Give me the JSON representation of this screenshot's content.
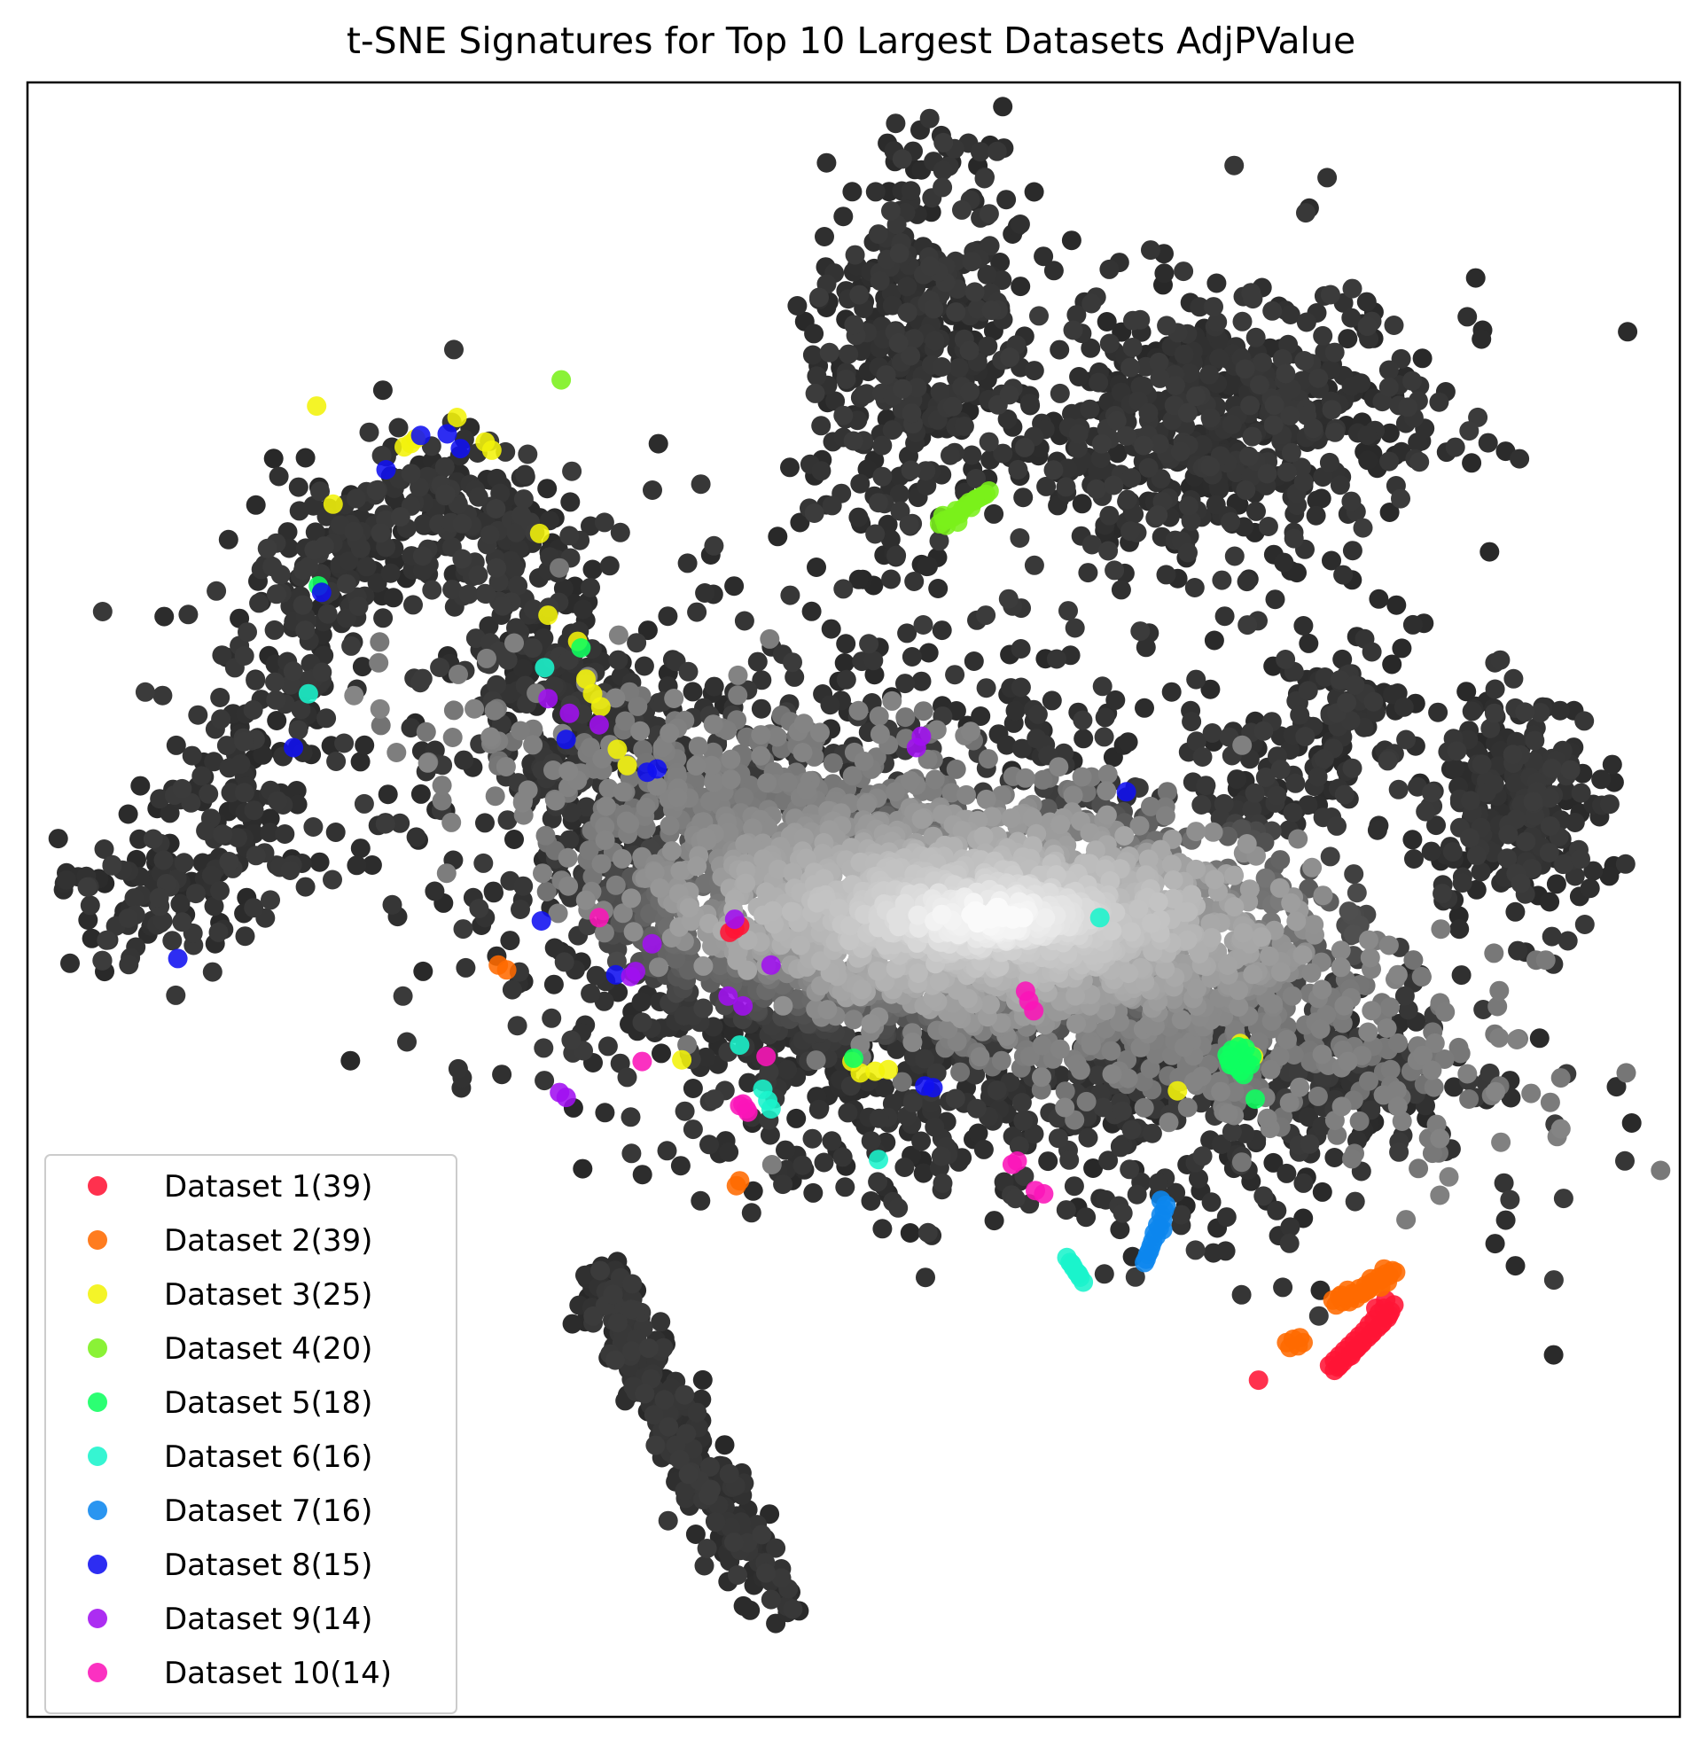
{
  "chart_data": {
    "type": "scatter",
    "title": "t-SNE Signatures for Top 10 Largest Datasets AdjPValue",
    "xlabel": "",
    "ylabel": "",
    "xlim": [
      0,
      100
    ],
    "ylim": [
      0,
      100
    ],
    "ticks": "none",
    "grid": false,
    "legend_position": "lower-left",
    "background_points": {
      "description_free": true,
      "color_map": "greys_by_density",
      "clusters": [
        {
          "kind": "band",
          "path": [
            [
              4.5,
              49.5
            ],
            [
              9,
              50.5
            ],
            [
              13,
              56
            ],
            [
              15,
              62
            ],
            [
              17,
              68
            ],
            [
              20,
              72
            ],
            [
              25,
              75
            ],
            [
              29,
              72
            ],
            [
              31,
              66
            ],
            [
              33,
              60
            ],
            [
              35,
              54
            ],
            [
              38,
              48
            ],
            [
              43,
              44
            ],
            [
              50,
              44
            ],
            [
              58,
              46
            ],
            [
              66,
              50
            ],
            [
              72,
              54
            ],
            [
              78,
              60
            ],
            [
              82,
              64
            ]
          ],
          "width": 5.5,
          "count": 1300
        },
        {
          "kind": "blob",
          "center": [
            58,
            49
          ],
          "radii": [
            24,
            7
          ],
          "angle": -18,
          "count": 2200,
          "light": true
        },
        {
          "kind": "blob",
          "center": [
            52,
            52
          ],
          "radii": [
            30,
            14
          ],
          "angle": -15,
          "count": 1100
        },
        {
          "kind": "blob",
          "center": [
            54,
            84
          ],
          "radii": [
            5.5,
            11
          ],
          "angle": -12,
          "count": 420
        },
        {
          "kind": "blob",
          "center": [
            72,
            79
          ],
          "radii": [
            12,
            8
          ],
          "angle": 5,
          "count": 650
        },
        {
          "kind": "blob",
          "center": [
            90,
            56
          ],
          "radii": [
            4.5,
            6
          ],
          "angle": 0,
          "count": 260
        },
        {
          "kind": "blob",
          "center": [
            60,
            40
          ],
          "radii": [
            24,
            9
          ],
          "angle": -5,
          "count": 700
        },
        {
          "kind": "blob",
          "center": [
            43,
            39
          ],
          "radii": [
            2.2,
            10
          ],
          "angle": 18,
          "count": 300,
          "path": [
            [
              34.5,
              27
            ],
            [
              39,
              18
            ],
            [
              45.5,
              6.5
            ]
          ]
        },
        {
          "kind": "blob",
          "center": [
            80,
            40
          ],
          "radii": [
            4,
            3
          ],
          "angle": 0,
          "count": 110
        }
      ]
    },
    "series": [
      {
        "name": "Dataset 1(39)",
        "color": "#ff1535",
        "points": [
          [
            42.5,
            48
          ],
          [
            42.8,
            48.2
          ],
          [
            43.1,
            48.4
          ],
          [
            74.5,
            20.6
          ],
          [
            78.8,
            21.5
          ],
          [
            79.1,
            21.8
          ],
          [
            79.4,
            22.1
          ],
          [
            79.7,
            22.4
          ],
          [
            80,
            22.7
          ],
          [
            80.3,
            23
          ],
          [
            80.6,
            23.3
          ],
          [
            80.9,
            23.6
          ],
          [
            81.2,
            24
          ],
          [
            81.5,
            24.3
          ],
          [
            81.8,
            24.7
          ],
          [
            82.1,
            25
          ],
          [
            79.3,
            21.4
          ],
          [
            79.6,
            21.7
          ],
          [
            79.9,
            22
          ],
          [
            80.2,
            22.3
          ],
          [
            80.5,
            22.6
          ],
          [
            80.8,
            22.9
          ],
          [
            81.1,
            23.2
          ],
          [
            81.4,
            23.5
          ],
          [
            81.7,
            23.8
          ],
          [
            82,
            24.1
          ],
          [
            82.3,
            24.4
          ],
          [
            82.5,
            24.8
          ],
          [
            79.1,
            21.2
          ],
          [
            79.4,
            21.5
          ],
          [
            80.1,
            22.1
          ],
          [
            80.7,
            22.8
          ],
          [
            81.3,
            23.4
          ],
          [
            81.9,
            24
          ],
          [
            82.4,
            24.6
          ],
          [
            82.7,
            25.2
          ],
          [
            82.2,
            25.5
          ],
          [
            81.6,
            25
          ],
          [
            80.4,
            22.5
          ]
        ]
      },
      {
        "name": "Dataset 2(39)",
        "color": "#ff6a00",
        "points": [
          [
            28.5,
            46
          ],
          [
            29,
            45.7
          ],
          [
            42.9,
            32.5
          ],
          [
            43.1,
            32.8
          ],
          [
            76.2,
            22.9
          ],
          [
            76.6,
            23.1
          ],
          [
            76.9,
            22.7
          ],
          [
            77.2,
            22.9
          ],
          [
            79,
            25.5
          ],
          [
            79.4,
            25.7
          ],
          [
            79.8,
            25.6
          ],
          [
            80.2,
            25.9
          ],
          [
            80.6,
            26.2
          ],
          [
            81,
            26.4
          ],
          [
            81.4,
            26.6
          ],
          [
            81.8,
            26.9
          ],
          [
            82.2,
            27.1
          ],
          [
            82.6,
            27.3
          ],
          [
            79.2,
            25.2
          ],
          [
            79.6,
            25.4
          ],
          [
            80,
            25.4
          ],
          [
            80.4,
            25.6
          ],
          [
            80.8,
            25.9
          ],
          [
            81.2,
            26.2
          ],
          [
            81.6,
            26.5
          ],
          [
            82,
            26.8
          ],
          [
            82.4,
            27
          ],
          [
            82.8,
            27.2
          ],
          [
            79.5,
            25.8
          ],
          [
            80.9,
            26
          ],
          [
            81.9,
            26.3
          ],
          [
            82.3,
            26.6
          ],
          [
            76.4,
            22.6
          ],
          [
            77,
            23.2
          ],
          [
            80.1,
            25.7
          ],
          [
            81.3,
            26.8
          ],
          [
            82.1,
            27.4
          ],
          [
            79.9,
            26.1
          ],
          [
            81.1,
            26.1
          ]
        ]
      },
      {
        "name": "Dataset 3(25)",
        "color": "#f2f20a",
        "points": [
          [
            17.5,
            80.2
          ],
          [
            26,
            79.5
          ],
          [
            22.8,
            77.7
          ],
          [
            23.2,
            77.9
          ],
          [
            23.5,
            78.2
          ],
          [
            27.7,
            78
          ],
          [
            28.1,
            77.5
          ],
          [
            18.5,
            74.2
          ],
          [
            31,
            72.4
          ],
          [
            31.5,
            67.4
          ],
          [
            33.3,
            65.8
          ],
          [
            33.8,
            63.5
          ],
          [
            34.2,
            62.6
          ],
          [
            34.7,
            61.8
          ],
          [
            35.7,
            59.2
          ],
          [
            36.3,
            58.2
          ],
          [
            39.6,
            40.2
          ],
          [
            49.9,
            40.1
          ],
          [
            50.4,
            39.4
          ],
          [
            51.3,
            39.5
          ],
          [
            52.1,
            39.6
          ],
          [
            73.4,
            41.2
          ],
          [
            73.8,
            40.7
          ],
          [
            74.2,
            40.4
          ],
          [
            69.6,
            38.3
          ]
        ]
      },
      {
        "name": "Dataset 4(20)",
        "color": "#7af01a",
        "points": [
          [
            32.3,
            81.8
          ],
          [
            55.2,
            73
          ],
          [
            55.5,
            73.2
          ],
          [
            56,
            73.4
          ],
          [
            56.4,
            73.6
          ],
          [
            56.8,
            74.1
          ],
          [
            57.3,
            74.4
          ],
          [
            57.6,
            74.6
          ],
          [
            58,
            74.8
          ],
          [
            55.4,
            73.5
          ],
          [
            55.8,
            73.3
          ],
          [
            56.2,
            73.8
          ],
          [
            56.6,
            73.9
          ],
          [
            57,
            74.3
          ],
          [
            57.4,
            74.5
          ],
          [
            57.8,
            74.7
          ],
          [
            55.6,
            72.9
          ],
          [
            56.3,
            73.1
          ],
          [
            57.1,
            74
          ],
          [
            58.2,
            75
          ]
        ]
      },
      {
        "name": "Dataset 5(18)",
        "color": "#0fff60",
        "points": [
          [
            17.6,
            69.2
          ],
          [
            33.5,
            65.4
          ],
          [
            50,
            40.3
          ],
          [
            72.6,
            40.5
          ],
          [
            72.9,
            40.8
          ],
          [
            73.2,
            40.2
          ],
          [
            73.5,
            40.6
          ],
          [
            73.8,
            40
          ],
          [
            74.1,
            40.4
          ],
          [
            73.1,
            39.8
          ],
          [
            73.4,
            39.5
          ],
          [
            73.7,
            40.9
          ],
          [
            74,
            39.9
          ],
          [
            72.8,
            39.9
          ],
          [
            73.3,
            41
          ],
          [
            73.6,
            39.3
          ],
          [
            74.3,
            37.8
          ],
          [
            72.7,
            40.2
          ]
        ]
      },
      {
        "name": "Dataset 6(16)",
        "color": "#1af4cc",
        "points": [
          [
            17,
            62.6
          ],
          [
            31.3,
            64.2
          ],
          [
            64.9,
            48.9
          ],
          [
            43.1,
            41.1
          ],
          [
            44.5,
            38.4
          ],
          [
            44.8,
            37.7
          ],
          [
            45,
            37.2
          ],
          [
            51.5,
            34.1
          ],
          [
            62.9,
            28.1
          ],
          [
            63.1,
            27.8
          ],
          [
            63.3,
            27.5
          ],
          [
            63.5,
            27.2
          ],
          [
            63.7,
            26.9
          ],
          [
            63.9,
            26.6
          ],
          [
            63.2,
            27.7
          ],
          [
            63.6,
            27.1
          ]
        ]
      },
      {
        "name": "Dataset 7(16)",
        "color": "#0d86ee",
        "points": [
          [
            68.6,
            31.6
          ],
          [
            68.8,
            31
          ],
          [
            68.7,
            30.4
          ],
          [
            68.5,
            29.9
          ],
          [
            68.3,
            29.4
          ],
          [
            68,
            28.8
          ],
          [
            67.8,
            28.3
          ],
          [
            67.6,
            27.8
          ],
          [
            68.9,
            31.3
          ],
          [
            68.4,
            30.1
          ],
          [
            68.1,
            29.1
          ],
          [
            67.7,
            28
          ],
          [
            68.6,
            30.7
          ],
          [
            68.2,
            29.6
          ],
          [
            67.9,
            28.5
          ],
          [
            68.7,
            29.8
          ]
        ]
      },
      {
        "name": "Dataset 8(15)",
        "color": "#1010f0",
        "points": [
          [
            9.1,
            46.4
          ],
          [
            16.1,
            59.3
          ],
          [
            17.8,
            68.8
          ],
          [
            21.7,
            76.3
          ],
          [
            23.8,
            78.4
          ],
          [
            25.4,
            78.5
          ],
          [
            26.2,
            77.6
          ],
          [
            32.6,
            59.8
          ],
          [
            37.5,
            57.8
          ],
          [
            38.1,
            58
          ],
          [
            31.1,
            48.7
          ],
          [
            35.6,
            45.4
          ],
          [
            54.3,
            38.6
          ],
          [
            54.8,
            38.5
          ],
          [
            66.5,
            56.6
          ]
        ]
      },
      {
        "name": "Dataset 9(14)",
        "color": "#a010f0",
        "points": [
          [
            31.5,
            62.3
          ],
          [
            32.8,
            61.4
          ],
          [
            34.6,
            60.7
          ],
          [
            53.8,
            59.3
          ],
          [
            54.1,
            60
          ],
          [
            42.8,
            48.8
          ],
          [
            37.8,
            47.3
          ],
          [
            36.5,
            45.3
          ],
          [
            36.8,
            45.6
          ],
          [
            45,
            46
          ],
          [
            42.4,
            44.1
          ],
          [
            43.3,
            43.5
          ],
          [
            32.2,
            38.2
          ],
          [
            32.6,
            37.9
          ]
        ]
      },
      {
        "name": "Dataset 10(14)",
        "color": "#fa14b8",
        "points": [
          [
            34.6,
            48.9
          ],
          [
            37.2,
            40.1
          ],
          [
            44.7,
            40.4
          ],
          [
            43.1,
            37.4
          ],
          [
            43.5,
            37.2
          ],
          [
            60.4,
            44.4
          ],
          [
            60.9,
            43.2
          ],
          [
            59.6,
            33.8
          ],
          [
            61,
            32.2
          ],
          [
            61.5,
            32
          ],
          [
            43.3,
            37.5
          ],
          [
            43.6,
            37
          ],
          [
            60.6,
            43.8
          ],
          [
            59.9,
            34
          ]
        ]
      }
    ],
    "legend": [
      {
        "label": "Dataset 1(39)",
        "color": "#ff1535"
      },
      {
        "label": "Dataset 2(39)",
        "color": "#ff6a00"
      },
      {
        "label": "Dataset 3(25)",
        "color": "#f2f20a"
      },
      {
        "label": "Dataset 4(20)",
        "color": "#7af01a"
      },
      {
        "label": "Dataset 5(18)",
        "color": "#0fff60"
      },
      {
        "label": "Dataset 6(16)",
        "color": "#1af4cc"
      },
      {
        "label": "Dataset 7(16)",
        "color": "#0d86ee"
      },
      {
        "label": "Dataset 8(15)",
        "color": "#1010f0"
      },
      {
        "label": "Dataset 9(14)",
        "color": "#a010f0"
      },
      {
        "label": "Dataset 10(14)",
        "color": "#fa14b8"
      }
    ]
  }
}
